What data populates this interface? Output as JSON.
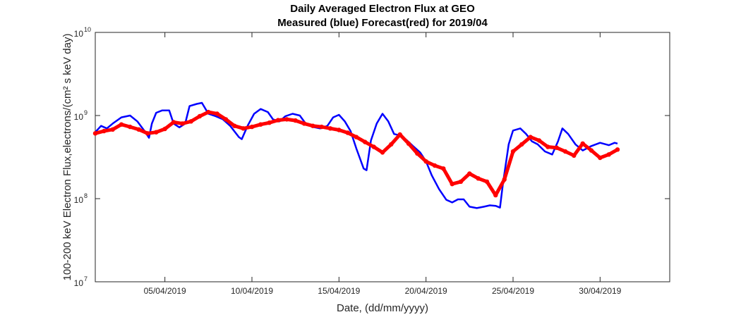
{
  "chart_data": {
    "type": "line",
    "title": "Daily Averaged Electron Flux at GEO",
    "subtitle": "Measured (blue) Forecast(red) for 2019/04",
    "xlabel": "Date, (dd/mm/yyyy)",
    "ylabel": "100-200 keV Electron Flux,electrons/(cm² s keV day)",
    "y_scale": "log",
    "xlim": [
      "2019-04-01",
      "2019-05-04"
    ],
    "ylim": [
      10000000,
      10000000000
    ],
    "x_ticks": [
      {
        "date": "2019-04-05",
        "label": "05/04/2019"
      },
      {
        "date": "2019-04-10",
        "label": "10/04/2019"
      },
      {
        "date": "2019-04-15",
        "label": "15/04/2019"
      },
      {
        "date": "2019-04-20",
        "label": "20/04/2019"
      },
      {
        "date": "2019-04-25",
        "label": "25/04/2019"
      },
      {
        "date": "2019-04-30",
        "label": "30/04/2019"
      }
    ],
    "y_ticks": [
      {
        "value": 10000000,
        "base": "10",
        "exp": "7"
      },
      {
        "value": 100000000,
        "base": "10",
        "exp": "8"
      },
      {
        "value": 1000000000,
        "base": "10",
        "exp": "9"
      },
      {
        "value": 10000000000,
        "base": "10",
        "exp": "10"
      }
    ],
    "grid": false,
    "series": [
      {
        "name": "Measured",
        "color": "#0000ff",
        "style": "line",
        "points": [
          [
            "2019-04-01 00:00",
            630000000.0
          ],
          [
            "2019-04-01 08:00",
            750000000.0
          ],
          [
            "2019-04-01 16:00",
            700000000.0
          ],
          [
            "2019-04-02 00:00",
            800000000.0
          ],
          [
            "2019-04-02 12:00",
            950000000.0
          ],
          [
            "2019-04-03 00:00",
            1000000000.0
          ],
          [
            "2019-04-03 10:00",
            850000000.0
          ],
          [
            "2019-04-03 20:00",
            650000000.0
          ],
          [
            "2019-04-04 02:00",
            540000000.0
          ],
          [
            "2019-04-04 06:00",
            800000000.0
          ],
          [
            "2019-04-04 12:00",
            1080000000.0
          ],
          [
            "2019-04-04 20:00",
            1150000000.0
          ],
          [
            "2019-04-05 06:00",
            1150000000.0
          ],
          [
            "2019-04-05 12:00",
            800000000.0
          ],
          [
            "2019-04-05 20:00",
            720000000.0
          ],
          [
            "2019-04-06 04:00",
            800000000.0
          ],
          [
            "2019-04-06 10:00",
            1300000000.0
          ],
          [
            "2019-04-06 20:00",
            1380000000.0
          ],
          [
            "2019-04-07 03:00",
            1420000000.0
          ],
          [
            "2019-04-07 12:00",
            1050000000.0
          ],
          [
            "2019-04-07 22:00",
            980000000.0
          ],
          [
            "2019-04-08 08:00",
            900000000.0
          ],
          [
            "2019-04-08 18:00",
            750000000.0
          ],
          [
            "2019-04-09 06:00",
            550000000.0
          ],
          [
            "2019-04-09 10:00",
            520000000.0
          ],
          [
            "2019-04-09 18:00",
            750000000.0
          ],
          [
            "2019-04-10 03:00",
            1050000000.0
          ],
          [
            "2019-04-10 12:00",
            1200000000.0
          ],
          [
            "2019-04-10 22:00",
            1100000000.0
          ],
          [
            "2019-04-11 05:00",
            900000000.0
          ],
          [
            "2019-04-11 14:00",
            850000000.0
          ],
          [
            "2019-04-11 22:00",
            980000000.0
          ],
          [
            "2019-04-12 08:00",
            1050000000.0
          ],
          [
            "2019-04-12 18:00",
            1000000000.0
          ],
          [
            "2019-04-13 02:00",
            800000000.0
          ],
          [
            "2019-04-13 12:00",
            730000000.0
          ],
          [
            "2019-04-13 22:00",
            700000000.0
          ],
          [
            "2019-04-14 08:00",
            750000000.0
          ],
          [
            "2019-04-14 16:00",
            950000000.0
          ],
          [
            "2019-04-15 00:00",
            1020000000.0
          ],
          [
            "2019-04-15 08:00",
            850000000.0
          ],
          [
            "2019-04-15 16:00",
            650000000.0
          ],
          [
            "2019-04-16 00:00",
            400000000.0
          ],
          [
            "2019-04-16 10:00",
            230000000.0
          ],
          [
            "2019-04-16 14:00",
            220000000.0
          ],
          [
            "2019-04-16 20:00",
            500000000.0
          ],
          [
            "2019-04-17 04:00",
            800000000.0
          ],
          [
            "2019-04-17 12:00",
            1050000000.0
          ],
          [
            "2019-04-17 20:00",
            850000000.0
          ],
          [
            "2019-04-18 04:00",
            600000000.0
          ],
          [
            "2019-04-18 14:00",
            570000000.0
          ],
          [
            "2019-04-18 22:00",
            500000000.0
          ],
          [
            "2019-04-19 06:00",
            430000000.0
          ],
          [
            "2019-04-19 16:00",
            360000000.0
          ],
          [
            "2019-04-20 00:00",
            280000000.0
          ],
          [
            "2019-04-20 08:00",
            190000000.0
          ],
          [
            "2019-04-20 18:00",
            130000000.0
          ],
          [
            "2019-04-21 04:00",
            97000000.0
          ],
          [
            "2019-04-21 12:00",
            90000000.0
          ],
          [
            "2019-04-21 20:00",
            98000000.0
          ],
          [
            "2019-04-22 04:00",
            98000000.0
          ],
          [
            "2019-04-22 12:00",
            80000000.0
          ],
          [
            "2019-04-22 22:00",
            77000000.0
          ],
          [
            "2019-04-23 08:00",
            80000000.0
          ],
          [
            "2019-04-23 16:00",
            83000000.0
          ],
          [
            "2019-04-24 00:00",
            82000000.0
          ],
          [
            "2019-04-24 06:00",
            78000000.0
          ],
          [
            "2019-04-24 10:00",
            150000000.0
          ],
          [
            "2019-04-24 18:00",
            450000000.0
          ],
          [
            "2019-04-25 00:00",
            660000000.0
          ],
          [
            "2019-04-25 10:00",
            700000000.0
          ],
          [
            "2019-04-25 18:00",
            600000000.0
          ],
          [
            "2019-04-26 02:00",
            490000000.0
          ],
          [
            "2019-04-26 10:00",
            450000000.0
          ],
          [
            "2019-04-26 20:00",
            370000000.0
          ],
          [
            "2019-04-27 06:00",
            340000000.0
          ],
          [
            "2019-04-27 14:00",
            490000000.0
          ],
          [
            "2019-04-27 20:00",
            700000000.0
          ],
          [
            "2019-04-28 04:00",
            600000000.0
          ],
          [
            "2019-04-28 14:00",
            450000000.0
          ],
          [
            "2019-04-29 00:00",
            380000000.0
          ],
          [
            "2019-04-29 12:00",
            430000000.0
          ],
          [
            "2019-04-30 00:00",
            470000000.0
          ],
          [
            "2019-04-30 12:00",
            440000000.0
          ],
          [
            "2019-04-30 20:00",
            470000000.0
          ],
          [
            "2019-05-01 00:00",
            460000000.0
          ]
        ]
      },
      {
        "name": "Forecast",
        "color": "#ff0000",
        "style": "markers",
        "points": [
          [
            "2019-04-01 00:00",
            610000000.0
          ],
          [
            "2019-04-01 12:00",
            650000000.0
          ],
          [
            "2019-04-02 00:00",
            680000000.0
          ],
          [
            "2019-04-02 12:00",
            780000000.0
          ],
          [
            "2019-04-03 00:00",
            730000000.0
          ],
          [
            "2019-04-03 12:00",
            680000000.0
          ],
          [
            "2019-04-04 00:00",
            610000000.0
          ],
          [
            "2019-04-04 12:00",
            630000000.0
          ],
          [
            "2019-04-05 00:00",
            690000000.0
          ],
          [
            "2019-04-05 12:00",
            830000000.0
          ],
          [
            "2019-04-06 00:00",
            800000000.0
          ],
          [
            "2019-04-06 12:00",
            850000000.0
          ],
          [
            "2019-04-07 00:00",
            980000000.0
          ],
          [
            "2019-04-07 12:00",
            1100000000.0
          ],
          [
            "2019-04-08 00:00",
            1050000000.0
          ],
          [
            "2019-04-08 12:00",
            900000000.0
          ],
          [
            "2019-04-09 00:00",
            750000000.0
          ],
          [
            "2019-04-09 12:00",
            700000000.0
          ],
          [
            "2019-04-10 00:00",
            730000000.0
          ],
          [
            "2019-04-10 12:00",
            780000000.0
          ],
          [
            "2019-04-11 00:00",
            820000000.0
          ],
          [
            "2019-04-11 12:00",
            880000000.0
          ],
          [
            "2019-04-12 00:00",
            900000000.0
          ],
          [
            "2019-04-12 12:00",
            870000000.0
          ],
          [
            "2019-04-13 00:00",
            800000000.0
          ],
          [
            "2019-04-13 12:00",
            750000000.0
          ],
          [
            "2019-04-14 00:00",
            730000000.0
          ],
          [
            "2019-04-14 12:00",
            700000000.0
          ],
          [
            "2019-04-15 00:00",
            670000000.0
          ],
          [
            "2019-04-15 12:00",
            620000000.0
          ],
          [
            "2019-04-16 00:00",
            550000000.0
          ],
          [
            "2019-04-16 12:00",
            480000000.0
          ],
          [
            "2019-04-17 00:00",
            420000000.0
          ],
          [
            "2019-04-17 12:00",
            360000000.0
          ],
          [
            "2019-04-18 00:00",
            450000000.0
          ],
          [
            "2019-04-18 12:00",
            590000000.0
          ],
          [
            "2019-04-19 00:00",
            460000000.0
          ],
          [
            "2019-04-19 12:00",
            350000000.0
          ],
          [
            "2019-04-20 00:00",
            280000000.0
          ],
          [
            "2019-04-20 12:00",
            250000000.0
          ],
          [
            "2019-04-21 00:00",
            230000000.0
          ],
          [
            "2019-04-21 12:00",
            150000000.0
          ],
          [
            "2019-04-22 00:00",
            160000000.0
          ],
          [
            "2019-04-22 12:00",
            200000000.0
          ],
          [
            "2019-04-23 00:00",
            175000000.0
          ],
          [
            "2019-04-23 12:00",
            160000000.0
          ],
          [
            "2019-04-24 00:00",
            110000000.0
          ],
          [
            "2019-04-24 12:00",
            170000000.0
          ],
          [
            "2019-04-25 00:00",
            370000000.0
          ],
          [
            "2019-04-25 12:00",
            450000000.0
          ],
          [
            "2019-04-26 00:00",
            550000000.0
          ],
          [
            "2019-04-26 12:00",
            500000000.0
          ],
          [
            "2019-04-27 00:00",
            420000000.0
          ],
          [
            "2019-04-27 12:00",
            410000000.0
          ],
          [
            "2019-04-28 00:00",
            370000000.0
          ],
          [
            "2019-04-28 12:00",
            330000000.0
          ],
          [
            "2019-04-29 00:00",
            460000000.0
          ],
          [
            "2019-04-29 12:00",
            380000000.0
          ],
          [
            "2019-04-30 00:00",
            310000000.0
          ],
          [
            "2019-04-30 12:00",
            340000000.0
          ],
          [
            "2019-05-01 00:00",
            390000000.0
          ]
        ]
      }
    ]
  }
}
